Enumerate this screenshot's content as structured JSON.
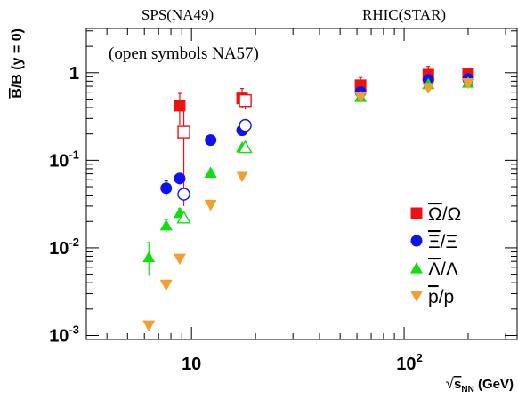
{
  "chart_data": {
    "type": "scatter",
    "title": "",
    "xlabel": {
      "base": "√",
      "main": "s",
      "sub": "NN",
      "unit": " (GeV)"
    },
    "ylabel": {
      "bar_letter": "B",
      "rest": "/B (y = 0)"
    },
    "x_scale": "log",
    "y_scale": "log",
    "xlim": [
      3.2,
      340
    ],
    "ylim": [
      0.0009,
      3.2
    ],
    "x_ticks": [
      {
        "value": 10,
        "base": "10",
        "exp": ""
      },
      {
        "value": 100,
        "base": "10",
        "exp": "2"
      }
    ],
    "y_ticks": [
      {
        "value": 0.001,
        "base": "10",
        "exp": "-3"
      },
      {
        "value": 0.01,
        "base": "10",
        "exp": "-2"
      },
      {
        "value": 0.1,
        "base": "10",
        "exp": "-1"
      },
      {
        "value": 1,
        "base": "1",
        "exp": ""
      }
    ],
    "top_labels": [
      {
        "text": "SPS(NA49)",
        "x": 8.6
      },
      {
        "text": "RHIC(STAR)",
        "x": 100
      }
    ],
    "annotation": "(open symbols NA57)",
    "grid": false,
    "legend_position": "lower-right",
    "series": [
      {
        "name": "Ω̄/Ω",
        "legend_bar": "Ω",
        "legend_rest": "/Ω",
        "marker": "square",
        "color": "#ee1111",
        "filled": [
          {
            "x": 8.8,
            "y": 0.42,
            "ylo": 0.25,
            "yhi": 0.58
          },
          {
            "x": 17.3,
            "y": 0.51,
            "ylo": 0.4,
            "yhi": 0.66
          },
          {
            "x": 62.4,
            "y": 0.72,
            "ylo": 0.58,
            "yhi": 0.88
          },
          {
            "x": 130,
            "y": 0.95,
            "ylo": 0.8,
            "yhi": 1.18
          },
          {
            "x": 200,
            "y": 0.96,
            "ylo": 0.88,
            "yhi": 1.08
          }
        ],
        "open": [
          {
            "x": 9.2,
            "y": 0.21,
            "ylo": 0.03,
            "yhi": 0.4
          },
          {
            "x": 17.9,
            "y": 0.48,
            "ylo": 0.38,
            "yhi": 0.58
          }
        ]
      },
      {
        "name": "Ξ̄/Ξ",
        "legend_bar": "Ξ",
        "legend_rest": "/Ξ",
        "marker": "circle",
        "color": "#1111ee",
        "filled": [
          {
            "x": 7.6,
            "y": 0.048,
            "ylo": 0.039,
            "yhi": 0.058
          },
          {
            "x": 8.8,
            "y": 0.062,
            "ylo": 0.053,
            "yhi": 0.071
          },
          {
            "x": 12.3,
            "y": 0.17,
            "ylo": 0.15,
            "yhi": 0.19
          },
          {
            "x": 17.3,
            "y": 0.22,
            "ylo": 0.2,
            "yhi": 0.25
          },
          {
            "x": 62.4,
            "y": 0.6,
            "ylo": 0.53,
            "yhi": 0.68
          },
          {
            "x": 130,
            "y": 0.83,
            "ylo": 0.76,
            "yhi": 0.9
          },
          {
            "x": 200,
            "y": 0.85,
            "ylo": 0.8,
            "yhi": 0.9
          }
        ],
        "open": [
          {
            "x": 9.2,
            "y": 0.041,
            "ylo": 0.035,
            "yhi": 0.047
          },
          {
            "x": 17.9,
            "y": 0.25,
            "ylo": 0.23,
            "yhi": 0.27
          }
        ]
      },
      {
        "name": "Λ̄/Λ",
        "legend_bar": "Λ",
        "legend_rest": "/Λ",
        "marker": "triangle-up",
        "color": "#11dd11",
        "filled": [
          {
            "x": 6.3,
            "y": 0.0078,
            "ylo": 0.0048,
            "yhi": 0.0115
          },
          {
            "x": 7.6,
            "y": 0.018,
            "ylo": 0.015,
            "yhi": 0.021
          },
          {
            "x": 8.8,
            "y": 0.025,
            "ylo": 0.022,
            "yhi": 0.028
          },
          {
            "x": 12.3,
            "y": 0.072,
            "ylo": 0.066,
            "yhi": 0.078
          },
          {
            "x": 17.3,
            "y": 0.14,
            "ylo": 0.13,
            "yhi": 0.15
          },
          {
            "x": 62.4,
            "y": 0.53,
            "ylo": 0.49,
            "yhi": 0.57
          },
          {
            "x": 130,
            "y": 0.74,
            "ylo": 0.7,
            "yhi": 0.78
          },
          {
            "x": 200,
            "y": 0.77,
            "ylo": 0.73,
            "yhi": 0.81
          }
        ],
        "open": [
          {
            "x": 9.2,
            "y": 0.022,
            "ylo": 0.02,
            "yhi": 0.024
          },
          {
            "x": 17.9,
            "y": 0.14,
            "ylo": 0.13,
            "yhi": 0.15
          }
        ]
      },
      {
        "name": "p̄/p",
        "legend_bar": "p",
        "legend_rest": "/p",
        "marker": "triangle-down",
        "color": "#f0a030",
        "filled": [
          {
            "x": 6.3,
            "y": 0.0013,
            "ylo": 0.0012,
            "yhi": 0.0014
          },
          {
            "x": 7.6,
            "y": 0.0038,
            "ylo": 0.0036,
            "yhi": 0.004
          },
          {
            "x": 8.8,
            "y": 0.0075,
            "ylo": 0.0071,
            "yhi": 0.0079
          },
          {
            "x": 12.3,
            "y": 0.031,
            "ylo": 0.029,
            "yhi": 0.033
          },
          {
            "x": 17.3,
            "y": 0.066,
            "ylo": 0.062,
            "yhi": 0.07
          },
          {
            "x": 62.4,
            "y": 0.53,
            "ylo": 0.5,
            "yhi": 0.56
          },
          {
            "x": 130,
            "y": 0.67,
            "ylo": 0.64,
            "yhi": 0.7
          },
          {
            "x": 200,
            "y": 0.76,
            "ylo": 0.72,
            "yhi": 0.8
          }
        ],
        "open": []
      }
    ]
  }
}
